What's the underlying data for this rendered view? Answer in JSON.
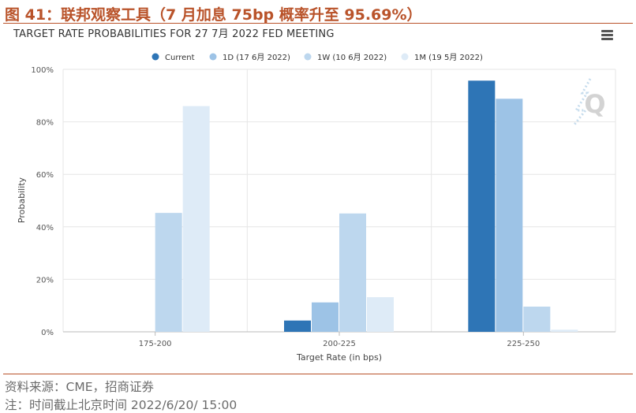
{
  "figure_title": "图 41：联邦观察工具（7 月加息 75bp 概率升至 95.69%）",
  "chart_data": {
    "type": "bar",
    "title": "TARGET RATE PROBABILITIES FOR 27 7月 2022 FED MEETING",
    "xlabel": "Target Rate (in bps)",
    "ylabel": "Probability",
    "ylim": [
      0,
      100
    ],
    "yticks": [
      "0%",
      "20%",
      "40%",
      "60%",
      "80%",
      "100%"
    ],
    "categories": [
      "175-200",
      "200-225",
      "225-250"
    ],
    "legend_position": "top-center",
    "grid": true,
    "series": [
      {
        "name": "Current",
        "color": "#2e75b6",
        "values": [
          0,
          4.3,
          95.7
        ]
      },
      {
        "name": "1D (17 6月 2022)",
        "color": "#9dc3e6",
        "values": [
          0,
          11.2,
          88.8
        ]
      },
      {
        "name": "1W (10 6月 2022)",
        "color": "#bdd7ee",
        "values": [
          45.3,
          45.1,
          9.6
        ]
      },
      {
        "name": "1M (19 5月 2022)",
        "color": "#deebf7",
        "values": [
          86.0,
          13.2,
          0.8
        ]
      }
    ]
  },
  "watermark": "Q",
  "footnotes": {
    "source": "资料来源：CME，招商证券",
    "note": "注：时间截止北京时间 2022/6/20/ 15:00"
  },
  "icons": {
    "menu": "hamburger-menu-icon"
  }
}
